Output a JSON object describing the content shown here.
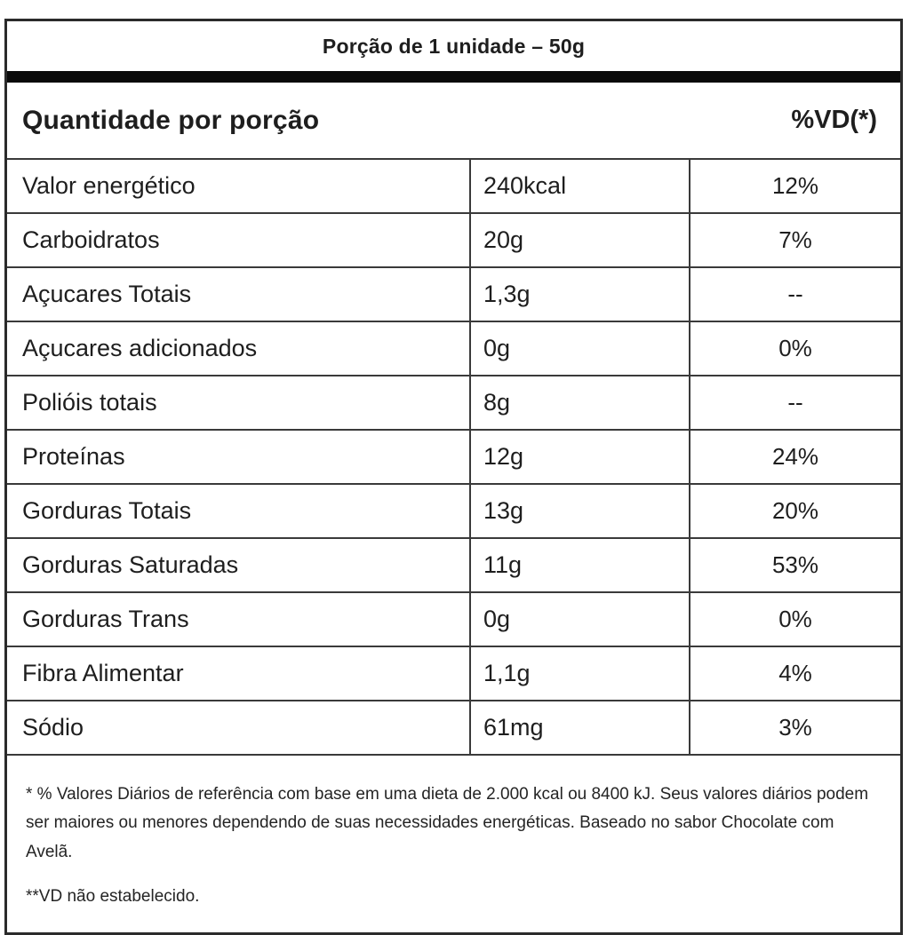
{
  "table": {
    "serving_title": "Porção de 1 unidade – 50g",
    "header": {
      "amount_label": "Quantidade por porção",
      "dv_label": "%VD(*)"
    },
    "rows": [
      {
        "label": "Valor energético",
        "value": "240kcal",
        "dv": "12%"
      },
      {
        "label": "Carboidratos",
        "value": "20g",
        "dv": "7%"
      },
      {
        "label": "Açucares Totais",
        "value": "1,3g",
        "dv": "--"
      },
      {
        "label": "Açucares adicionados",
        "value": "0g",
        "dv": "0%"
      },
      {
        "label": "Polióis totais",
        "value": "8g",
        "dv": "--"
      },
      {
        "label": "Proteínas",
        "value": "12g",
        "dv": "24%"
      },
      {
        "label": "Gorduras Totais",
        "value": "13g",
        "dv": "20%"
      },
      {
        "label": "Gorduras Saturadas",
        "value": "11g",
        "dv": "53%"
      },
      {
        "label": "Gorduras Trans",
        "value": "0g",
        "dv": "0%"
      },
      {
        "label": "Fibra Alimentar",
        "value": "1,1g",
        "dv": "4%"
      },
      {
        "label": "Sódio",
        "value": "61mg",
        "dv": "3%"
      }
    ],
    "footnotes": {
      "daily_values_note": "* % Valores Diários de referência com base em uma dieta de 2.000 kcal ou 8400 kJ. Seus valores diários podem ser maiores ou menores dependendo de suas necessidades energéticas. Baseado no sabor Chocolate com Avelã.",
      "dv_not_established_note": "**VD não estabelecido."
    },
    "colors": {
      "background": "#ffffff",
      "text": "#1e1e1e",
      "border": "#2b2b2b",
      "row_divider": "#3a3a3a",
      "separator_bar": "#0a0a0a"
    }
  }
}
